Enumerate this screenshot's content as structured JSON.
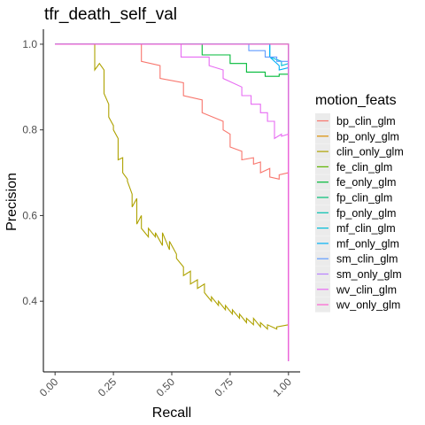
{
  "chart_data": {
    "type": "line",
    "title": "tfr_death_self_val",
    "xlabel": "Recall",
    "ylabel": "Precision",
    "xlim": [
      -0.05,
      1.05
    ],
    "ylim": [
      0.235,
      1.035
    ],
    "x_ticks": [
      "0.00",
      "0.25",
      "0.50",
      "0.75",
      "1.00"
    ],
    "x_tick_values": [
      0,
      0.25,
      0.5,
      0.75,
      1.0
    ],
    "y_ticks": [
      "0.4",
      "0.6",
      "0.8",
      "1.0"
    ],
    "y_tick_values": [
      0.4,
      0.6,
      0.8,
      1.0
    ],
    "grid": false,
    "legend_title": "motion_feats",
    "legend_position": "right",
    "series": [
      {
        "name": "bp_clin_glm",
        "color": "#F8766D",
        "x": [
          0,
          0.37,
          0.37,
          0.45,
          0.45,
          0.55,
          0.55,
          0.63,
          0.63,
          0.72,
          0.72,
          0.75,
          0.75,
          0.8,
          0.8,
          0.85,
          0.85,
          0.88,
          0.88,
          0.92,
          0.92,
          0.96,
          0.96,
          1.0,
          1.0
        ],
        "y": [
          1.0,
          1.0,
          0.96,
          0.95,
          0.92,
          0.91,
          0.88,
          0.87,
          0.84,
          0.82,
          0.8,
          0.79,
          0.76,
          0.75,
          0.73,
          0.735,
          0.72,
          0.725,
          0.7,
          0.71,
          0.69,
          0.685,
          0.695,
          0.7,
          0.26
        ]
      },
      {
        "name": "bp_only_glm",
        "color": "#DB8E00",
        "x": [
          0,
          1.0,
          1.0
        ],
        "y": [
          1.0,
          1.0,
          0.26
        ]
      },
      {
        "name": "clin_only_glm",
        "color": "#AEA200",
        "x": [
          0,
          0.17,
          0.17,
          0.19,
          0.21,
          0.21,
          0.23,
          0.23,
          0.25,
          0.25,
          0.27,
          0.27,
          0.29,
          0.29,
          0.31,
          0.31,
          0.33,
          0.33,
          0.35,
          0.35,
          0.37,
          0.37,
          0.4,
          0.4,
          0.43,
          0.43,
          0.46,
          0.46,
          0.49,
          0.49,
          0.52,
          0.52,
          0.55,
          0.55,
          0.58,
          0.58,
          0.61,
          0.61,
          0.64,
          0.64,
          0.67,
          0.67,
          0.7,
          0.7,
          0.73,
          0.73,
          0.76,
          0.76,
          0.79,
          0.79,
          0.82,
          0.82,
          0.85,
          0.85,
          0.88,
          0.88,
          0.91,
          0.91,
          0.95,
          0.95,
          1.0
        ],
        "y": [
          1.0,
          1.0,
          0.94,
          0.955,
          0.94,
          0.885,
          0.86,
          0.83,
          0.81,
          0.8,
          0.78,
          0.73,
          0.735,
          0.7,
          0.685,
          0.68,
          0.65,
          0.62,
          0.64,
          0.58,
          0.6,
          0.57,
          0.55,
          0.57,
          0.55,
          0.56,
          0.53,
          0.56,
          0.52,
          0.54,
          0.51,
          0.5,
          0.48,
          0.46,
          0.47,
          0.44,
          0.45,
          0.43,
          0.44,
          0.42,
          0.4,
          0.41,
          0.39,
          0.4,
          0.38,
          0.39,
          0.37,
          0.38,
          0.36,
          0.37,
          0.35,
          0.36,
          0.345,
          0.36,
          0.34,
          0.35,
          0.335,
          0.345,
          0.335,
          0.34,
          0.345
        ]
      },
      {
        "name": "fe_clin_glm",
        "color": "#5EB300",
        "x": [
          0,
          1.0,
          1.0
        ],
        "y": [
          1.0,
          1.0,
          0.26
        ]
      },
      {
        "name": "fe_only_glm",
        "color": "#00BA38",
        "x": [
          0,
          0.63,
          0.63,
          0.75,
          0.75,
          0.82,
          0.82,
          0.9,
          0.9,
          0.96,
          0.96,
          1.0,
          1.0
        ],
        "y": [
          1.0,
          1.0,
          0.975,
          0.975,
          0.955,
          0.955,
          0.935,
          0.935,
          0.925,
          0.925,
          0.93,
          0.93,
          0.26
        ]
      },
      {
        "name": "fp_clin_glm",
        "color": "#00BF74",
        "x": [
          0,
          1.0,
          1.0
        ],
        "y": [
          1.0,
          1.0,
          0.26
        ]
      },
      {
        "name": "fp_only_glm",
        "color": "#00C0AF",
        "x": [
          0,
          1.0,
          1.0
        ],
        "y": [
          1.0,
          1.0,
          0.26
        ]
      },
      {
        "name": "mf_clin_glm",
        "color": "#00BCD8",
        "x": [
          0,
          0.92,
          0.92,
          0.97,
          0.97,
          1.0,
          1.0
        ],
        "y": [
          1.0,
          1.0,
          0.97,
          0.96,
          0.95,
          0.955,
          0.26
        ]
      },
      {
        "name": "mf_only_glm",
        "color": "#00B0F6",
        "x": [
          0,
          0.92,
          0.92,
          0.96,
          0.96,
          1.0,
          1.0
        ],
        "y": [
          1.0,
          1.0,
          0.97,
          0.95,
          0.94,
          0.945,
          0.26
        ]
      },
      {
        "name": "sm_clin_glm",
        "color": "#619CFF",
        "x": [
          0,
          0.83,
          0.83,
          0.9,
          0.9,
          0.95,
          0.95,
          1.0,
          1.0
        ],
        "y": [
          1.0,
          1.0,
          0.985,
          0.985,
          0.97,
          0.97,
          0.96,
          0.96,
          0.26
        ]
      },
      {
        "name": "sm_only_glm",
        "color": "#B983FF",
        "x": [
          0,
          1.0,
          1.0
        ],
        "y": [
          1.0,
          1.0,
          0.26
        ]
      },
      {
        "name": "wv_clin_glm",
        "color": "#E76BF3",
        "x": [
          0,
          0.54,
          0.54,
          0.66,
          0.66,
          0.72,
          0.72,
          0.8,
          0.8,
          0.84,
          0.84,
          0.88,
          0.88,
          0.91,
          0.91,
          0.94,
          0.94,
          0.97,
          0.97,
          1.0,
          1.0
        ],
        "y": [
          1.0,
          1.0,
          0.97,
          0.97,
          0.95,
          0.94,
          0.92,
          0.9,
          0.88,
          0.88,
          0.86,
          0.86,
          0.84,
          0.84,
          0.82,
          0.82,
          0.78,
          0.79,
          0.785,
          0.79,
          0.26
        ]
      },
      {
        "name": "wv_only_glm",
        "color": "#FD61D1",
        "x": [
          0,
          1.0,
          1.0
        ],
        "y": [
          1.0,
          1.0,
          0.26
        ]
      }
    ]
  }
}
